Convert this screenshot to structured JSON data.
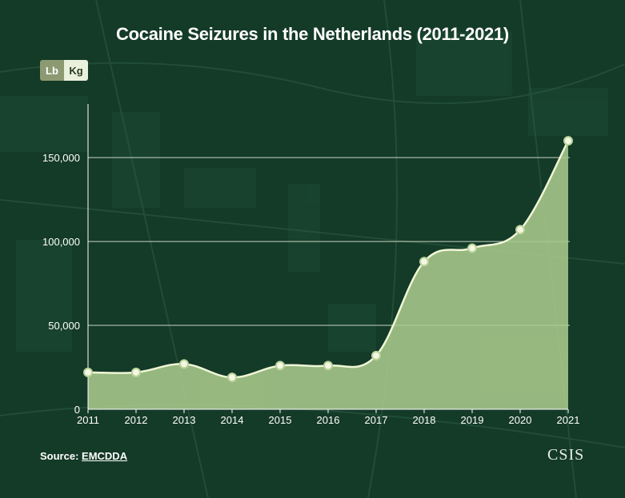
{
  "title": "Cocaine Seizures in the Netherlands (2011-2021)",
  "unit_toggle": {
    "options": [
      "Lb",
      "Kg"
    ],
    "selected": "Lb"
  },
  "source": {
    "label": "Source:",
    "link_text": "EMCDDA"
  },
  "brand": "CSIS",
  "colors": {
    "background": "#143a28",
    "area_fill": "#a9c98c",
    "line": "#f0f7d6",
    "point_fill": "#f4f7e3",
    "point_stroke": "#b9d39a",
    "grid": "#e9efdc"
  },
  "chart_data": {
    "type": "area",
    "x": [
      "2011",
      "2012",
      "2013",
      "2014",
      "2015",
      "2016",
      "2017",
      "2018",
      "2019",
      "2020",
      "2021"
    ],
    "values": [
      22000,
      22000,
      27000,
      19000,
      26000,
      26000,
      32000,
      88000,
      96000,
      107000,
      160000
    ],
    "yticks": [
      0,
      50000,
      100000,
      150000
    ],
    "ytick_labels": [
      "0",
      "50,000",
      "100,000",
      "150,000"
    ],
    "ylim": [
      0,
      182000
    ],
    "grid": true,
    "xlabel": "",
    "ylabel": ""
  }
}
